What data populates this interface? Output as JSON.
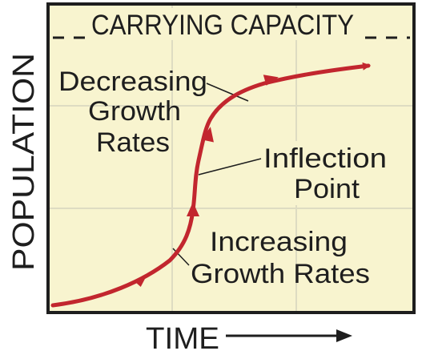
{
  "diagram": {
    "title": "CARRYING CAPACITY",
    "y_axis_label": "POPULATION",
    "x_axis_label": "TIME",
    "annotations": {
      "decreasing": [
        "Decreasing",
        "Growth",
        "Rates"
      ],
      "inflection": [
        "Inflection",
        "Point"
      ],
      "increasing": [
        "Increasing",
        "Growth Rates"
      ]
    },
    "colors": {
      "plot_background": "#f8f4cf",
      "curve": "#c2262e",
      "gridline": "#dedcc2",
      "frame": "#1e1e1e",
      "text": "#1e1e1e"
    }
  }
}
